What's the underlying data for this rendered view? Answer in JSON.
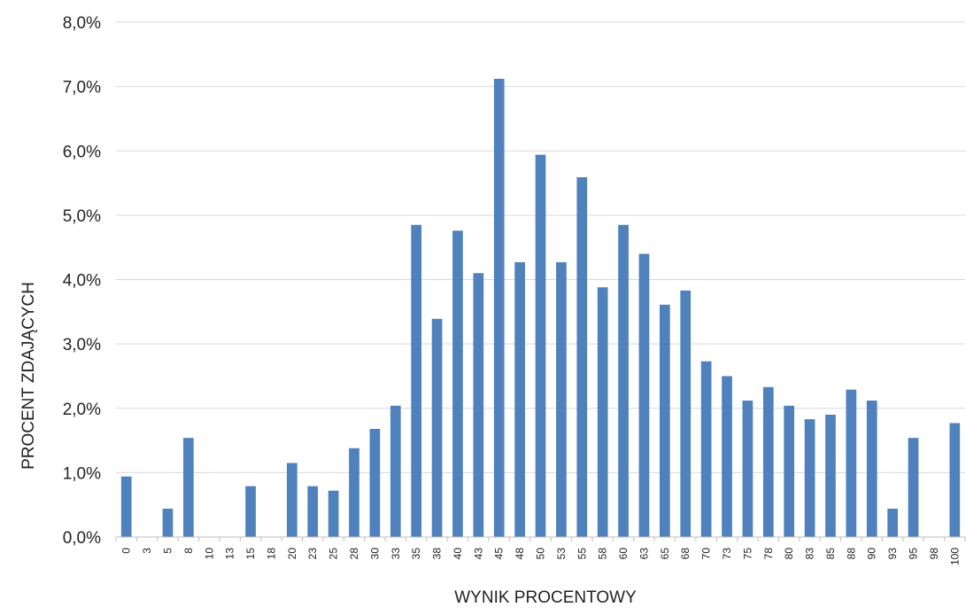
{
  "chart_data": {
    "type": "bar",
    "title": "",
    "xlabel": "WYNIK PROCENTOWY",
    "ylabel": "PROCENT ZDAJĄCYCH",
    "ylim": [
      0,
      8
    ],
    "yticks": [
      "0,0%",
      "1,0%",
      "2,0%",
      "3,0%",
      "4,0%",
      "5,0%",
      "6,0%",
      "7,0%",
      "8,0%"
    ],
    "grid": true,
    "legend": "none",
    "bar_color": "#4f81bd",
    "categories": [
      "0",
      "3",
      "5",
      "8",
      "10",
      "13",
      "15",
      "18",
      "20",
      "23",
      "25",
      "28",
      "30",
      "33",
      "35",
      "38",
      "40",
      "43",
      "45",
      "48",
      "50",
      "53",
      "55",
      "58",
      "60",
      "63",
      "65",
      "68",
      "70",
      "73",
      "75",
      "78",
      "80",
      "83",
      "85",
      "88",
      "90",
      "93",
      "95",
      "98",
      "100"
    ],
    "values": [
      0.94,
      0,
      0.44,
      1.54,
      0,
      0,
      0.79,
      0,
      1.15,
      0.79,
      0.72,
      1.38,
      1.68,
      2.04,
      4.85,
      3.39,
      4.76,
      4.1,
      7.12,
      4.27,
      5.94,
      4.27,
      5.59,
      3.88,
      4.85,
      4.4,
      3.61,
      3.83,
      2.73,
      2.5,
      2.12,
      2.33,
      2.04,
      1.83,
      1.9,
      2.29,
      2.12,
      0.44,
      1.54,
      0,
      1.77
    ]
  }
}
